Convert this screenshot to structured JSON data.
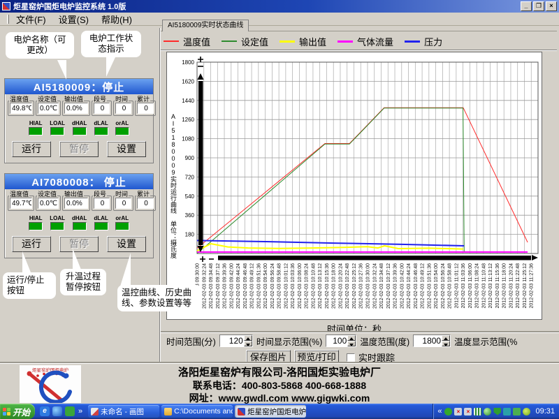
{
  "window": {
    "title": "炬星窑炉国炬电炉监控系统 1.0版",
    "menu": [
      "文件(F)",
      "设置(S)",
      "帮助(H)"
    ],
    "buttons": {
      "minimize": "_",
      "maximize": "❐",
      "close": "×"
    }
  },
  "callouts": [
    {
      "text": "电炉名称（可更改）"
    },
    {
      "text": "电炉工作状态指示"
    },
    {
      "text": "运行/停止按钮"
    },
    {
      "text": "升温过程暂停按钮"
    },
    {
      "text": "温控曲线、历史曲线、参数设置等等"
    }
  ],
  "furnaces": [
    {
      "title": "AI5180009：停止",
      "fields": [
        {
          "label": "温度值",
          "value": "49.8℃"
        },
        {
          "label": "设定值",
          "value": "0.0℃"
        },
        {
          "label": "输出值",
          "value": "0.0%"
        },
        {
          "label": "段号",
          "value": "0"
        },
        {
          "label": "时间",
          "value": "0"
        },
        {
          "label": "累计",
          "value": "0"
        }
      ],
      "alarms": [
        "HIAL",
        "LOAL",
        "dHAL",
        "dLAL",
        "orAL"
      ],
      "buttons": {
        "run": "运行",
        "pause": "暂停",
        "settings": "设置"
      }
    },
    {
      "title": "AI7080008： 停止",
      "fields": [
        {
          "label": "温度值",
          "value": "49.7℃"
        },
        {
          "label": "设定值",
          "value": "0.0℃"
        },
        {
          "label": "输出值",
          "value": "0.0%"
        },
        {
          "label": "段号",
          "value": "0"
        },
        {
          "label": "时间",
          "value": "0"
        },
        {
          "label": "累计",
          "value": "0"
        }
      ],
      "alarms": [
        "HIAL",
        "LOAL",
        "dHAL",
        "dLAL",
        "orAL"
      ],
      "buttons": {
        "run": "运行",
        "pause": "暂停",
        "settings": "设置"
      }
    }
  ],
  "tab": {
    "label": "AI5180009实时状态曲线"
  },
  "chart_data": {
    "type": "line",
    "title": "AI5180009实时状态曲线",
    "y_axis_label": "AI5180009实时运行曲线 单位：摄氏度",
    "x_axis_label": "时间单位：秒",
    "ylim": [
      0,
      1800
    ],
    "y_tick_step": 180,
    "x_start_label": "2012-02-03 09:30:00",
    "x_tick_interval_seconds": 144,
    "x_tick_count": 50,
    "x_range_seconds": 7200,
    "grid": true,
    "legend_position": "top",
    "series": [
      {
        "name": "温度值",
        "color": "#ff2a2a",
        "width": 1,
        "points": [
          [
            0,
            50
          ],
          [
            2700,
            1035
          ],
          [
            3220,
            1035
          ],
          [
            3950,
            1372
          ],
          [
            5620,
            1372
          ],
          [
            6980,
            105
          ]
        ]
      },
      {
        "name": "设定值",
        "color": "#2e8b2e",
        "width": 1,
        "points": [
          [
            0,
            0
          ],
          [
            2700,
            1030
          ],
          [
            3220,
            1030
          ],
          [
            3950,
            1368
          ],
          [
            5616,
            1368
          ],
          [
            5640,
            15
          ]
        ]
      },
      {
        "name": "输出值",
        "color": "#ffff00",
        "width": 2,
        "points": [
          [
            0,
            25
          ],
          [
            290,
            92
          ],
          [
            650,
            62
          ],
          [
            1080,
            52
          ],
          [
            1730,
            48
          ],
          [
            2450,
            52
          ],
          [
            3100,
            58
          ],
          [
            3600,
            64
          ],
          [
            3820,
            52
          ],
          [
            3960,
            72
          ],
          [
            4250,
            46
          ],
          [
            4900,
            50
          ],
          [
            5620,
            42
          ]
        ]
      },
      {
        "name": "气体流量",
        "color": "#ff00ff",
        "width": 2,
        "points": [
          [
            0,
            14
          ],
          [
            6980,
            14
          ]
        ]
      },
      {
        "name": "压力",
        "color": "#2222ee",
        "width": 2,
        "points": [
          [
            0,
            122
          ],
          [
            1440,
            112
          ],
          [
            2880,
            98
          ],
          [
            4320,
            86
          ],
          [
            5640,
            72
          ]
        ]
      }
    ]
  },
  "chart_controls": {
    "time_range_label": "时间范围(分)",
    "time_range_value": "120",
    "time_display_label": "时间显示范围(%)",
    "time_display_value": "100",
    "temp_range_label": "温度范围(度)",
    "temp_range_value": "1800",
    "temp_display_label": "温度显示范围(%",
    "save_button": "保存图片",
    "print_button": "预览/打印",
    "track_checkbox": "实时跟踪",
    "track_checked": false
  },
  "footer": {
    "company": "洛阳炬星窑炉有限公司-洛阳国炬实验电炉厂",
    "phone": "联系电话：400-803-5868 400-668-1888",
    "website": "网址：www.gwdl.com  www.gigwki.com",
    "logo_text": "炬星窑炉国炬电炉"
  },
  "taskbar": {
    "start": "开始",
    "overflow": "»",
    "tasks": [
      {
        "label": "未命名 - 画图"
      },
      {
        "label": "C:\\Documents and Se..."
      },
      {
        "label": "炬星窑炉国炬电炉监..."
      }
    ],
    "tray_expand": "«",
    "clock": "09:31"
  }
}
